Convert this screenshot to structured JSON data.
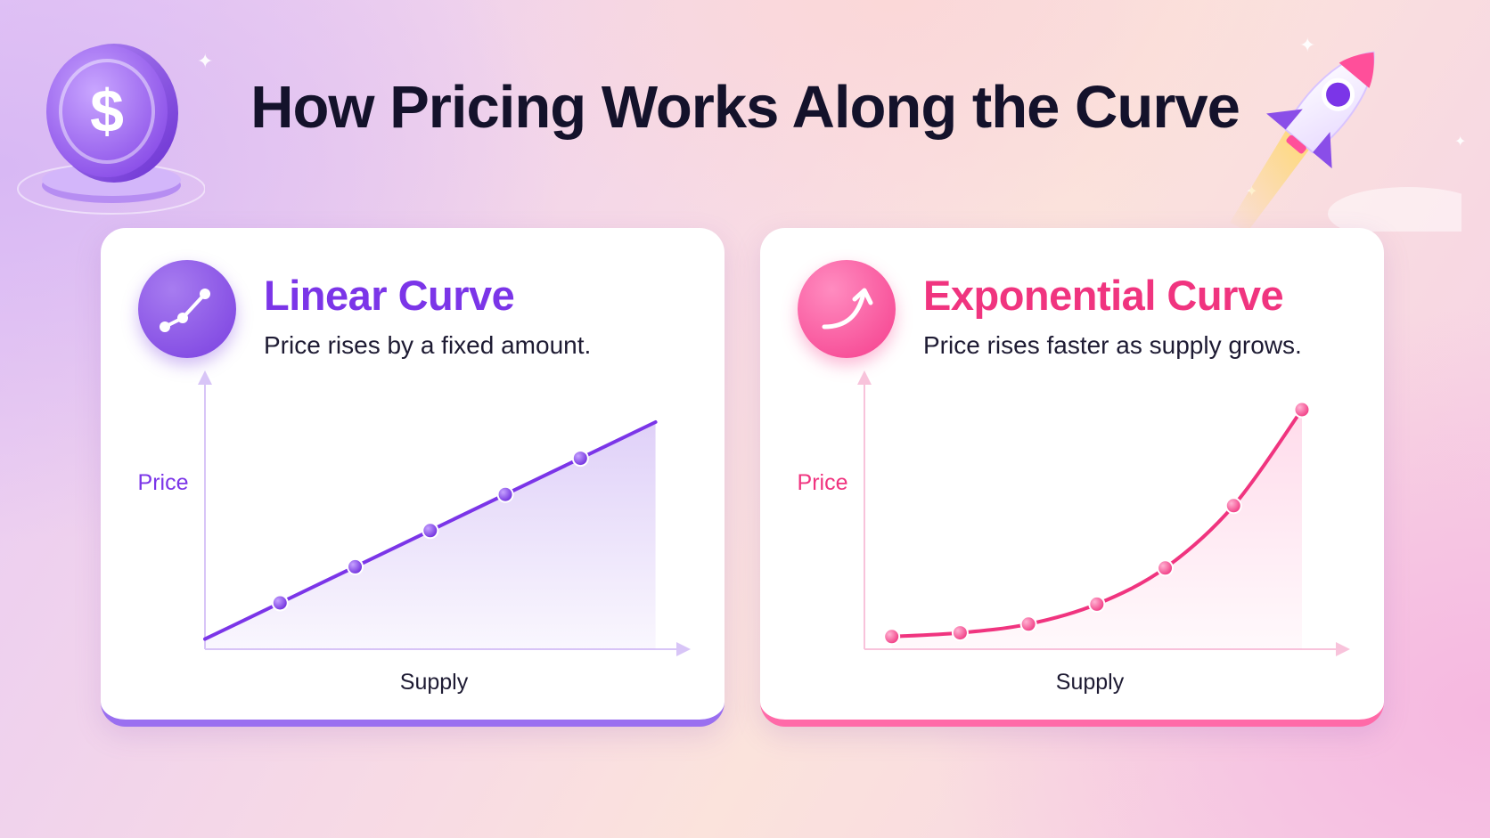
{
  "title": "How Pricing Works Along the Curve",
  "icons": {
    "coin": "dollar-coin-icon",
    "rocket": "rocket-icon",
    "linear": "rising-line-icon",
    "exponential": "curved-arrow-up-icon"
  },
  "colors": {
    "linear_accent": "#7b35e8",
    "exponential_accent": "#f0347f",
    "title": "#14122b"
  },
  "cards": {
    "linear": {
      "title": "Linear Curve",
      "description": "Price rises by a fixed amount."
    },
    "exponential": {
      "title": "Exponential Curve",
      "description": "Price rises faster as supply grows."
    }
  },
  "chart_data": [
    {
      "type": "line",
      "xlabel": "Supply",
      "ylabel": "Price",
      "x": [
        0,
        1,
        2,
        3,
        4,
        5,
        6
      ],
      "markers_at": [
        1,
        2,
        3,
        4,
        5
      ],
      "series": [
        {
          "values": [
            0.3,
            1.75,
            3.2,
            4.65,
            6.1,
            7.55,
            9.0
          ]
        }
      ],
      "xlim": [
        0,
        6.1
      ],
      "ylim": [
        0,
        10
      ],
      "fill": true,
      "grid": false,
      "color": "#7b35e8"
    },
    {
      "type": "line",
      "xlabel": "Supply",
      "ylabel": "Price",
      "x": [
        0,
        1,
        2,
        3,
        4,
        5,
        6
      ],
      "markers_at": [
        0,
        1,
        2,
        3,
        4,
        5,
        6
      ],
      "series": [
        {
          "values": [
            0.8,
            1.1,
            1.8,
            3.4,
            6.3,
            11.3,
            19.0
          ]
        }
      ],
      "xlim": [
        -0.4,
        6.3
      ],
      "ylim": [
        0,
        20
      ],
      "fill": true,
      "grid": false,
      "color": "#f0347f"
    }
  ]
}
